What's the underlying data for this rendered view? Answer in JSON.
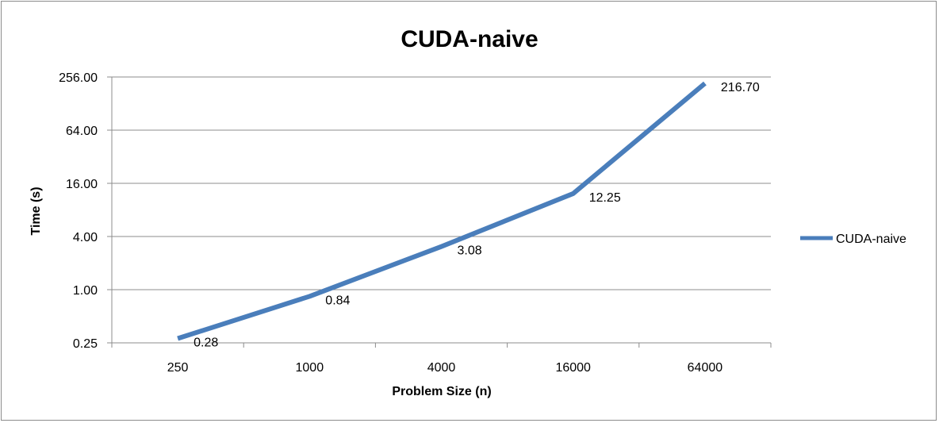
{
  "chart_data": {
    "type": "line",
    "title": "CUDA-naive",
    "xlabel": "Problem Size (n)",
    "ylabel": "Time (s)",
    "y_scale": "log2",
    "ylim": [
      0.25,
      256
    ],
    "y_ticks": [
      "0.25",
      "1.00",
      "4.00",
      "16.00",
      "64.00",
      "256.00"
    ],
    "y_tick_values": [
      0.25,
      1,
      4,
      16,
      64,
      256
    ],
    "categories": [
      "250",
      "1000",
      "4000",
      "16000",
      "64000"
    ],
    "series": [
      {
        "name": "CUDA-naive",
        "values": [
          0.28,
          0.84,
          3.08,
          12.25,
          216.7
        ],
        "labels": [
          "0.28",
          "0.84",
          "3.08",
          "12.25",
          "216.70"
        ],
        "color": "#4a7ebb"
      }
    ],
    "grid": true,
    "legend_position": "right"
  }
}
